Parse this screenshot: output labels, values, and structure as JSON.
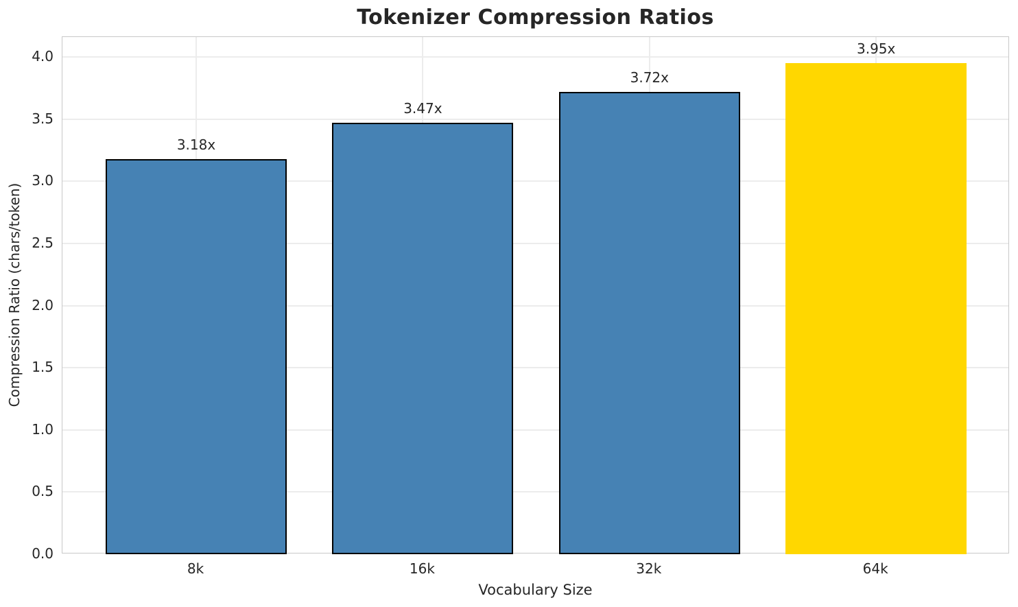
{
  "title": "Tokenizer Compression Ratios",
  "chart_data": {
    "type": "bar",
    "title": "Tokenizer Compression Ratios",
    "xlabel": "Vocabulary Size",
    "ylabel": "Compression Ratio (chars/token)",
    "categories": [
      "8k",
      "16k",
      "32k",
      "64k"
    ],
    "values": [
      3.18,
      3.47,
      3.72,
      3.95
    ],
    "bar_labels": [
      "3.18x",
      "3.47x",
      "3.72x",
      "3.95x"
    ],
    "ylim": [
      0,
      4.16
    ],
    "yticks": [
      0.0,
      0.5,
      1.0,
      1.5,
      2.0,
      2.5,
      3.0,
      3.5,
      4.0
    ],
    "ytick_labels": [
      "0.0",
      "0.5",
      "1.0",
      "1.5",
      "2.0",
      "2.5",
      "3.0",
      "3.5",
      "4.0"
    ],
    "grid": true,
    "legend": "none",
    "bar_color": "#4682b4",
    "highlight_color": "#ffd700",
    "highlight_index": 3,
    "bar_edge_color": "#000000",
    "grid_color": "#ececec",
    "spine_color": "#c8c8c8",
    "text_color": "#262626"
  }
}
